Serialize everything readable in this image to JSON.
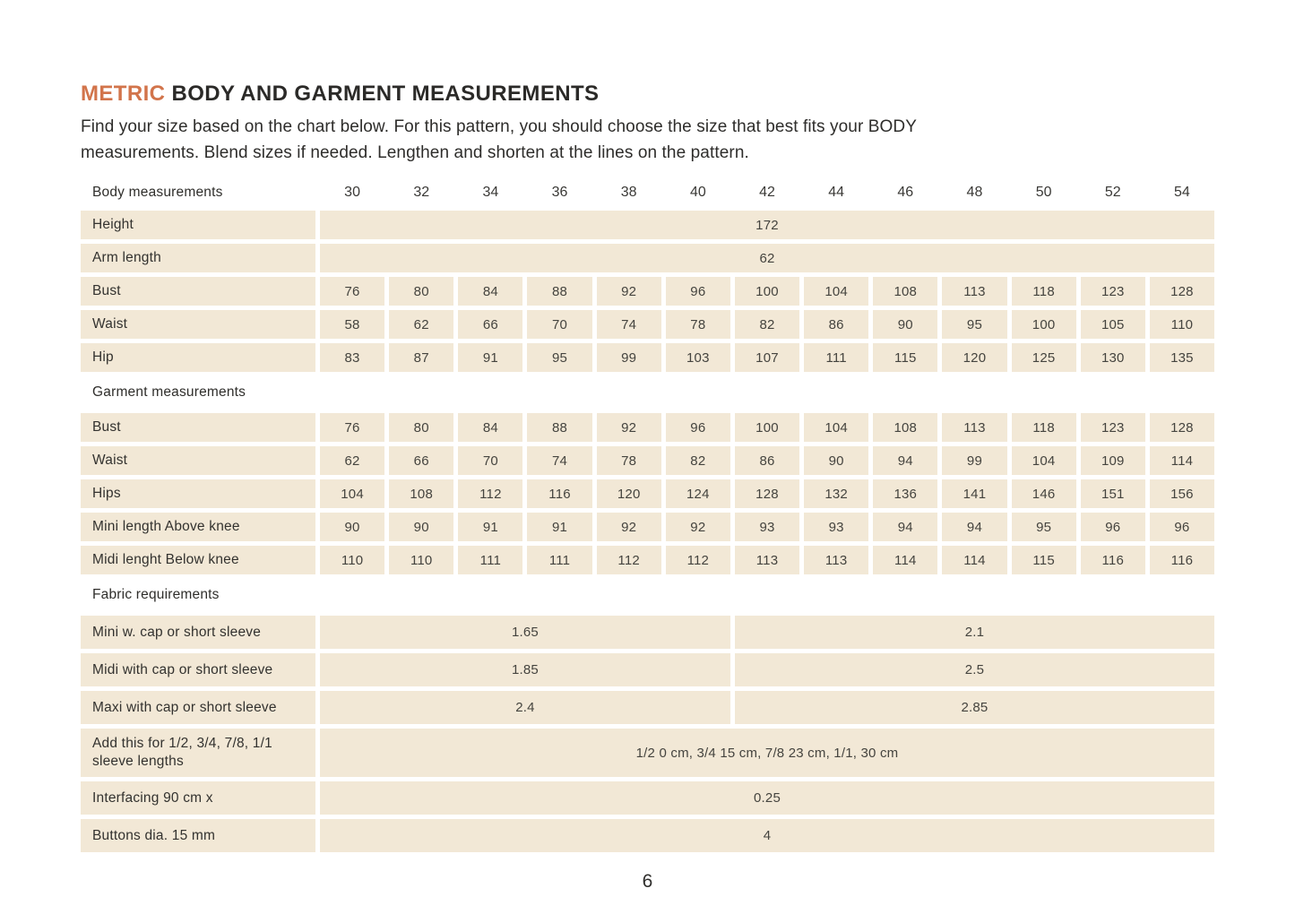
{
  "page": {
    "title_accent": "METRIC",
    "title_rest": " BODY AND GARMENT MEASUREMENTS",
    "intro_line1": "Find your size based on the chart below. For this pattern, you should choose the size that best fits your BODY",
    "intro_line2": "measurements. Blend sizes if needed. Lengthen and shorten at the lines on the pattern.",
    "page_number": "6"
  },
  "colors": {
    "accent_orange": "#d2744b",
    "cell_beige": "#f2e8d6",
    "text_dark": "#2e2d2b"
  },
  "table": {
    "header": {
      "label": "Body measurements",
      "sizes": [
        "30",
        "32",
        "34",
        "36",
        "38",
        "40",
        "42",
        "44",
        "46",
        "48",
        "50",
        "52",
        "54"
      ]
    },
    "sections": [
      {
        "title": "",
        "rows": [
          {
            "label": "Height",
            "span_value": "172"
          },
          {
            "label": "Arm length",
            "span_value": "62"
          },
          {
            "label": "Bust",
            "values": [
              "76",
              "80",
              "84",
              "88",
              "92",
              "96",
              "100",
              "104",
              "108",
              "113",
              "118",
              "123",
              "128"
            ]
          },
          {
            "label": "Waist",
            "values": [
              "58",
              "62",
              "66",
              "70",
              "74",
              "78",
              "82",
              "86",
              "90",
              "95",
              "100",
              "105",
              "110"
            ]
          },
          {
            "label": "Hip",
            "values": [
              "83",
              "87",
              "91",
              "95",
              "99",
              "103",
              "107",
              "111",
              "115",
              "120",
              "125",
              "130",
              "135"
            ]
          }
        ]
      },
      {
        "title": "Garment measurements",
        "rows": [
          {
            "label": "Bust",
            "values": [
              "76",
              "80",
              "84",
              "88",
              "92",
              "96",
              "100",
              "104",
              "108",
              "113",
              "118",
              "123",
              "128"
            ]
          },
          {
            "label": "Waist",
            "values": [
              "62",
              "66",
              "70",
              "74",
              "78",
              "82",
              "86",
              "90",
              "94",
              "99",
              "104",
              "109",
              "114"
            ]
          },
          {
            "label": "Hips",
            "values": [
              "104",
              "108",
              "112",
              "116",
              "120",
              "124",
              "128",
              "132",
              "136",
              "141",
              "146",
              "151",
              "156"
            ]
          },
          {
            "label": "Mini length Above knee",
            "values": [
              "90",
              "90",
              "91",
              "91",
              "92",
              "92",
              "93",
              "93",
              "94",
              "94",
              "95",
              "96",
              "96"
            ]
          },
          {
            "label": "Midi lenght Below knee",
            "values": [
              "110",
              "110",
              "111",
              "111",
              "112",
              "112",
              "113",
              "113",
              "114",
              "114",
              "115",
              "116",
              "116"
            ]
          }
        ]
      },
      {
        "title": "Fabric requirements",
        "rows": [
          {
            "label": "Mini w. cap or short sleeve",
            "half_values": [
              "1.65",
              "2.1"
            ]
          },
          {
            "label": "Midi with cap or short sleeve",
            "half_values": [
              "1.85",
              "2.5"
            ]
          },
          {
            "label": "Maxi with cap or short sleeve",
            "half_values": [
              "2.4",
              "2.85"
            ]
          },
          {
            "label": "Add this for 1/2, 3/4, 7/8, 1/1 sleeve lengths",
            "span_value": "1/2 0 cm, 3/4 15 cm, 7/8 23 cm, 1/1, 30 cm",
            "tall": true
          },
          {
            "label": "Interfacing 90 cm x",
            "span_value": "0.25"
          },
          {
            "label": "Buttons dia. 15 mm",
            "span_value": "4"
          }
        ]
      }
    ]
  }
}
